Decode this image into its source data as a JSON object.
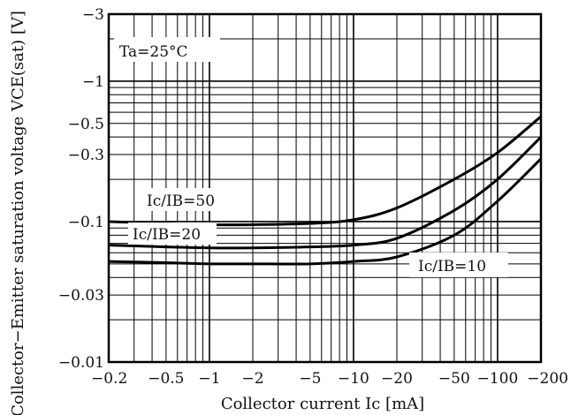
{
  "chart_data": {
    "type": "line",
    "xscale": "log",
    "yscale": "log",
    "x_ticks": [
      {
        "value": 0.2,
        "label": "−0.2"
      },
      {
        "value": 0.5,
        "label": "−0.5"
      },
      {
        "value": 1,
        "label": "−1"
      },
      {
        "value": 2,
        "label": "−2"
      },
      {
        "value": 5,
        "label": "−5"
      },
      {
        "value": 10,
        "label": "−10"
      },
      {
        "value": 20,
        "label": "−20"
      },
      {
        "value": 50,
        "label": "−50"
      },
      {
        "value": 100,
        "label": "−100"
      },
      {
        "value": 200,
        "label": "−200"
      }
    ],
    "y_ticks": [
      {
        "value": 3,
        "label": "−3"
      },
      {
        "value": 1,
        "label": "−1"
      },
      {
        "value": 0.5,
        "label": "−0.5"
      },
      {
        "value": 0.3,
        "label": "−0.3"
      },
      {
        "value": 0.1,
        "label": "−0.1"
      },
      {
        "value": 0.03,
        "label": "−0.03"
      },
      {
        "value": 0.01,
        "label": "−0.01"
      }
    ],
    "xlim": [
      0.2,
      200
    ],
    "ylim": [
      0.01,
      3
    ],
    "xlabel": "Collector current  Ic  [mA]",
    "ylabel": "Collector−Emitter  saturation voltage  VCE(sat)  [V]",
    "grid": true,
    "condition_label": "Ta=25°C",
    "series": [
      {
        "name": "Ic/IB=50",
        "x": [
          0.2,
          0.5,
          1,
          2,
          5,
          10,
          20,
          50,
          100,
          200
        ],
        "y": [
          0.1,
          0.097,
          0.095,
          0.095,
          0.097,
          0.103,
          0.125,
          0.2,
          0.31,
          0.56
        ]
      },
      {
        "name": "Ic/IB=20",
        "x": [
          0.2,
          0.5,
          1,
          2,
          5,
          10,
          20,
          50,
          100,
          200
        ],
        "y": [
          0.068,
          0.066,
          0.065,
          0.065,
          0.066,
          0.068,
          0.076,
          0.12,
          0.2,
          0.4
        ]
      },
      {
        "name": "Ic/IB=10",
        "x": [
          0.2,
          0.5,
          1,
          2,
          5,
          10,
          20,
          50,
          100,
          200
        ],
        "y": [
          0.052,
          0.051,
          0.05,
          0.05,
          0.05,
          0.052,
          0.056,
          0.08,
          0.14,
          0.28
        ]
      }
    ]
  }
}
